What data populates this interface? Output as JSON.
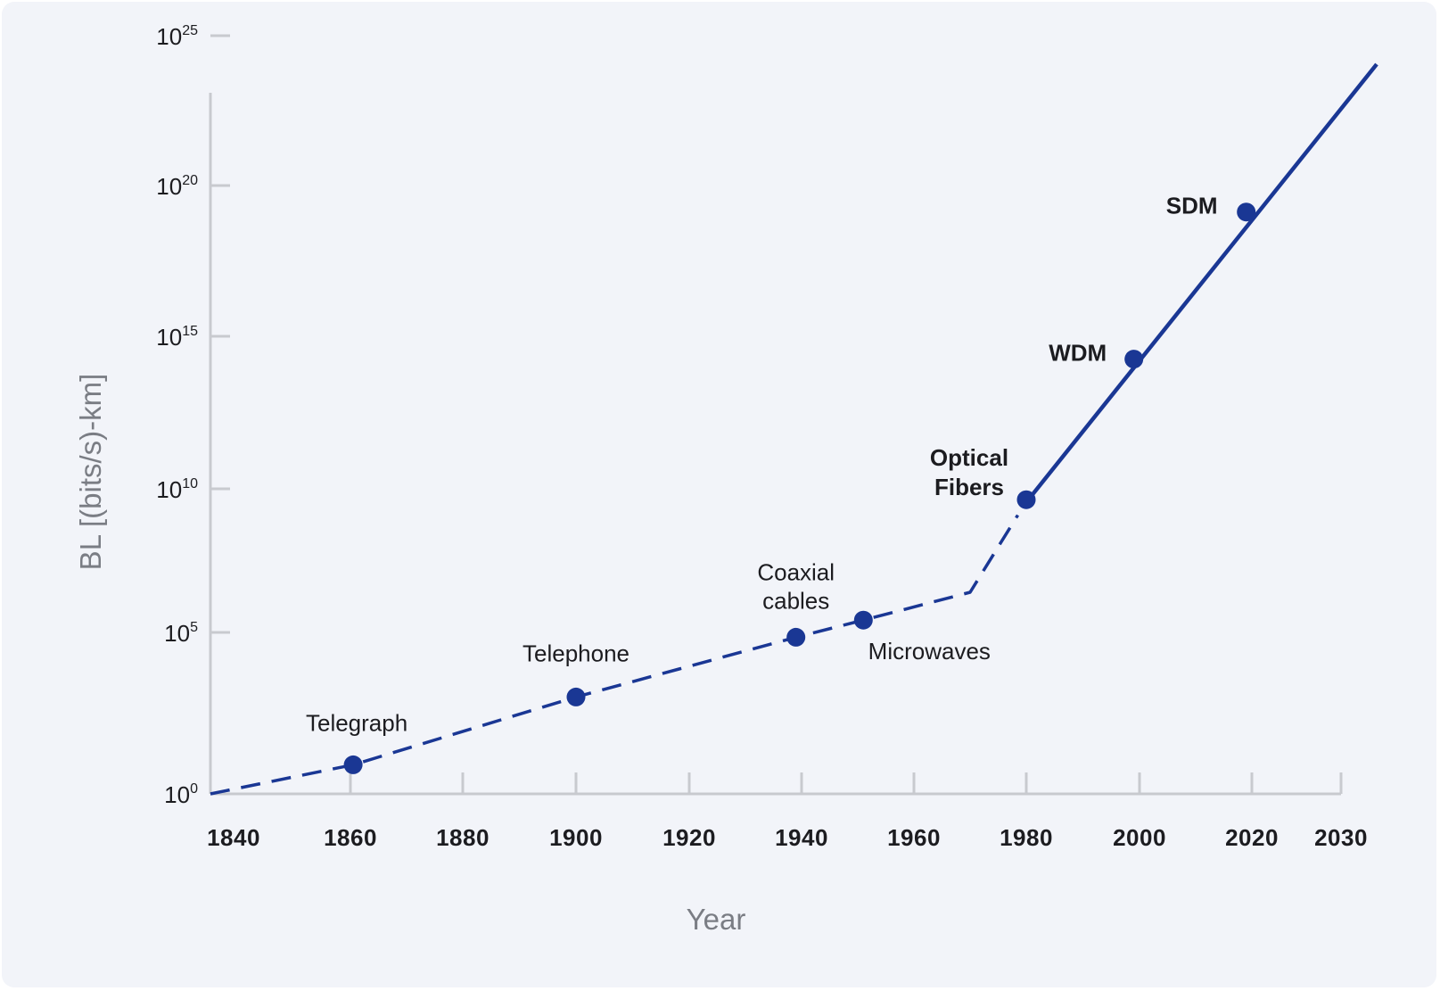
{
  "chart_data": {
    "type": "line",
    "xlabel": "Year",
    "ylabel": "BL [(bits/s)-km]",
    "y_scale": "log",
    "x_ticks": [
      "1840",
      "1860",
      "1880",
      "1900",
      "1920",
      "1940",
      "1960",
      "1980",
      "2000",
      "2020",
      "2030"
    ],
    "x_tick_values": [
      1840,
      1860,
      1880,
      1900,
      1920,
      1940,
      1960,
      1980,
      2000,
      2020,
      2030
    ],
    "y_ticks": [
      {
        "base": "10",
        "exp": "0",
        "value": 1
      },
      {
        "base": "10",
        "exp": "5",
        "value": 100000
      },
      {
        "base": "10",
        "exp": "10",
        "value": 10000000000
      },
      {
        "base": "10",
        "exp": "15",
        "value": 1000000000000000.0
      },
      {
        "base": "10",
        "exp": "20",
        "value": 1e+20
      },
      {
        "base": "10",
        "exp": "25",
        "value": 1e+25
      }
    ],
    "xlim": [
      1840,
      2030
    ],
    "ylim_log10": [
      0,
      25
    ],
    "grid": false,
    "legend": "none",
    "colors": {
      "line": "#1a3794",
      "axis": "#c8cacf",
      "background": "#f2f4f9"
    },
    "series": [
      {
        "style": "dashed",
        "points": [
          {
            "year": 1840,
            "log10_BL": 0
          },
          {
            "year": 1860.5,
            "log10_BL": 0.9
          },
          {
            "year": 1900,
            "log10_BL": 3.0
          },
          {
            "year": 1939,
            "log10_BL": 4.85
          },
          {
            "year": 1951,
            "log10_BL": 5.4
          },
          {
            "year": 1970,
            "log10_BL": 6.3
          },
          {
            "year": 1978.5,
            "log10_BL": 8.8
          }
        ]
      },
      {
        "style": "solid",
        "points": [
          {
            "year": 1979.5,
            "log10_BL": 9.1
          },
          {
            "year": 2034,
            "log10_BL": 26.8
          }
        ]
      }
    ],
    "markers": [
      {
        "name": "Telegraph",
        "year": 1860.5,
        "log10_BL": 0.9,
        "bold": false
      },
      {
        "name": "Telephone",
        "year": 1900,
        "log10_BL": 3.0,
        "bold": false
      },
      {
        "name": "Coaxial cables",
        "year": 1939,
        "log10_BL": 4.85,
        "bold": false
      },
      {
        "name": "Microwaves",
        "year": 1951,
        "log10_BL": 5.4,
        "bold": false
      },
      {
        "name": "Optical Fibers",
        "year": 1980,
        "log10_BL": 9.3,
        "bold": true
      },
      {
        "name": "WDM",
        "year": 1999,
        "log10_BL": 13.9,
        "bold": true
      },
      {
        "name": "SDM",
        "year": 2019,
        "log10_BL": 18.7,
        "bold": true
      }
    ],
    "label_texts": {
      "Telegraph": [
        "Telegraph"
      ],
      "Telephone": [
        "Telephone"
      ],
      "Coaxial cables": [
        "Coaxial",
        "cables"
      ],
      "Microwaves": [
        "Microwaves"
      ],
      "Optical Fibers": [
        "Optical",
        "Fibers"
      ],
      "WDM": [
        "WDM"
      ],
      "SDM": [
        "SDM"
      ]
    }
  }
}
